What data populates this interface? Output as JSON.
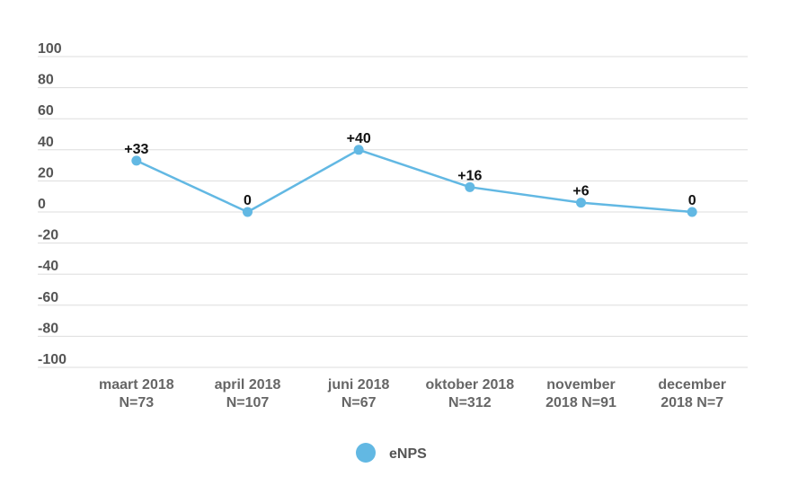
{
  "chart_data": {
    "type": "line",
    "categories": [
      [
        "maart 2018",
        "N=73"
      ],
      [
        "april 2018",
        "N=107"
      ],
      [
        "juni 2018",
        "N=67"
      ],
      [
        "oktober 2018",
        "N=312"
      ],
      [
        "november",
        "2018 N=91"
      ],
      [
        "december",
        "2018 N=7"
      ]
    ],
    "series": [
      {
        "name": "eNPS",
        "values": [
          33,
          0,
          40,
          16,
          6,
          0
        ],
        "labels": [
          "+33",
          "0",
          "+40",
          "+16",
          "+6",
          "0"
        ],
        "color": "#62b8e3"
      }
    ],
    "ylim": [
      -100,
      100
    ],
    "yticks": [
      100,
      80,
      60,
      40,
      20,
      0,
      -20,
      -40,
      -60,
      -80,
      -100
    ],
    "grid": true,
    "legend_position": "bottom-center",
    "title": "",
    "xlabel": "",
    "ylabel": ""
  }
}
